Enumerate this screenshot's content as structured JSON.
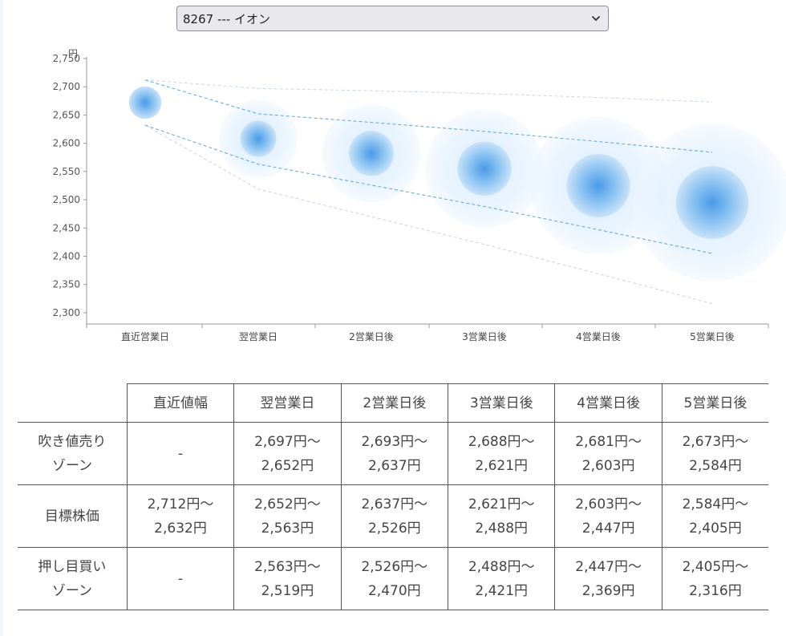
{
  "selector": {
    "value": "8267 --- イオン"
  },
  "chart_data": {
    "type": "bubble-forecast",
    "y_unit": "円",
    "ylim": [
      2280,
      2750
    ],
    "y_ticks": [
      2750,
      2700,
      2650,
      2600,
      2550,
      2500,
      2450,
      2400,
      2350,
      2300
    ],
    "y_tick_labels": [
      "2,750",
      "2,700",
      "2,650",
      "2,600",
      "2,550",
      "2,500",
      "2,450",
      "2,400",
      "2,350",
      "2,300"
    ],
    "categories": [
      "直近営業日",
      "翌営業日",
      "2営業日後",
      "3営業日後",
      "4営業日後",
      "5営業日後"
    ],
    "center": [
      2672,
      2608,
      2582,
      2555,
      2525,
      2495
    ],
    "inner_upper": [
      2712,
      2652,
      2637,
      2621,
      2603,
      2584
    ],
    "inner_lower": [
      2632,
      2563,
      2526,
      2488,
      2447,
      2405
    ],
    "outer_upper": [
      2712,
      2697,
      2693,
      2688,
      2681,
      2673
    ],
    "outer_lower": [
      2632,
      2519,
      2470,
      2421,
      2369,
      2316
    ],
    "colors": {
      "bubble_core": "#4a9ae8",
      "dashed_inner": "#6fa8d8",
      "dashed_outer": "#c9d7e3",
      "axis": "#999999"
    },
    "grid": false
  },
  "table": {
    "headers": [
      "",
      "直近値幅",
      "翌営業日",
      "2営業日後",
      "3営業日後",
      "4営業日後",
      "5営業日後"
    ],
    "rows": [
      {
        "label": "吹き値売り\nゾーン",
        "cells": [
          "-",
          "2,697円～\n2,652円",
          "2,693円～\n2,637円",
          "2,688円～\n2,621円",
          "2,681円～\n2,603円",
          "2,673円～\n2,584円"
        ]
      },
      {
        "label": "目標株価",
        "cells": [
          "2,712円～\n2,632円",
          "2,652円～\n2,563円",
          "2,637円～\n2,526円",
          "2,621円～\n2,488円",
          "2,603円～\n2,447円",
          "2,584円～\n2,405円"
        ]
      },
      {
        "label": "押し目買い\nゾーン",
        "cells": [
          "-",
          "2,563円～\n2,519円",
          "2,526円～\n2,470円",
          "2,488円～\n2,421円",
          "2,447円～\n2,369円",
          "2,405円～\n2,316円"
        ]
      }
    ]
  }
}
